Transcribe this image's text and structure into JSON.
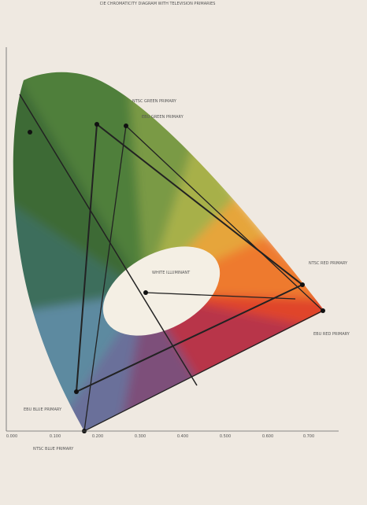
{
  "header": {
    "title": "CIE CHROMATICITY DIAGRAM WITH TELEVISION PRIMARIES"
  },
  "labels": {
    "green1": "NTSC GREEN PRIMARY",
    "green2": "EBU GREEN PRIMARY",
    "white": "WHITE ILLUMINANT",
    "red1": "NTSC RED PRIMARY",
    "red2": "EBU RED PRIMARY",
    "blue1": "EBU BLUE PRIMARY",
    "blue2": "NTSC BLUE PRIMARY"
  },
  "x_axis": [
    "0.000",
    "0.100",
    "0.200",
    "0.300",
    "0.400",
    "0.500",
    "0.600",
    "0.700"
  ]
}
